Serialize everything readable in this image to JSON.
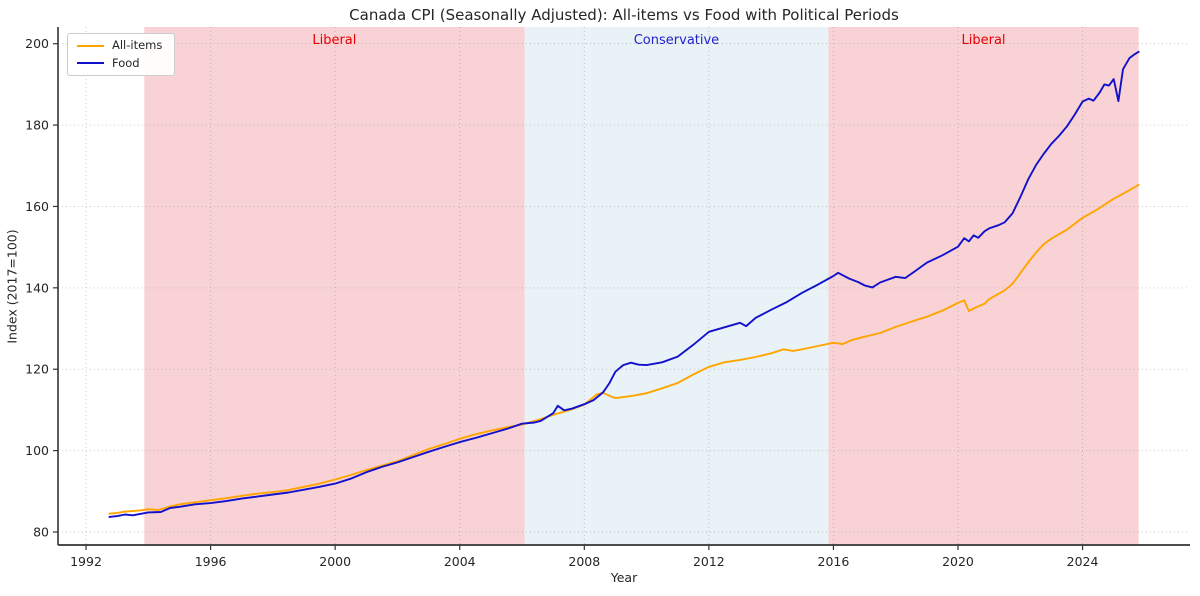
{
  "chart_data": {
    "type": "line",
    "title": "Canada CPI (Seasonally Adjusted): All-items vs Food with Political Periods",
    "xlabel": "Year",
    "ylabel": "Index (2017=100)",
    "xlim": [
      1991.1,
      2027.45
    ],
    "ylim": [
      76.8,
      204.1
    ],
    "x_ticks": [
      1992,
      1996,
      2000,
      2004,
      2008,
      2012,
      2016,
      2020,
      2024
    ],
    "y_ticks": [
      80,
      100,
      120,
      140,
      160,
      180,
      200
    ],
    "grid": "dotted",
    "legend_position": "upper-left",
    "axis_color": "#333333",
    "text_color": "#262626",
    "grid_color": "rgba(140,140,140,0.45)",
    "background_periods": [
      {
        "label": "Liberal",
        "start": 1993.87,
        "end": 2006.08,
        "fill": "#f9d2d6",
        "label_color": "#e60000"
      },
      {
        "label": "Conservative",
        "start": 2006.08,
        "end": 2015.84,
        "fill": "#e9f2f6",
        "label_color": "#2222cc"
      },
      {
        "label": "Liberal",
        "start": 2015.84,
        "end": 2025.8,
        "fill": "#f9d2d6",
        "label_color": "#e60000"
      }
    ],
    "series": [
      {
        "name": "All-items",
        "color": "#ffa500",
        "points": [
          [
            1992.75,
            84.5
          ],
          [
            1993.0,
            84.7
          ],
          [
            1993.25,
            85.0
          ],
          [
            1993.75,
            85.3
          ],
          [
            1994.0,
            85.6
          ],
          [
            1994.33,
            85.4
          ],
          [
            1994.66,
            86.2
          ],
          [
            1995.0,
            86.8
          ],
          [
            1995.5,
            87.3
          ],
          [
            1996.0,
            87.8
          ],
          [
            1996.5,
            88.3
          ],
          [
            1997.0,
            88.9
          ],
          [
            1997.5,
            89.4
          ],
          [
            1998.0,
            89.8
          ],
          [
            1998.5,
            90.3
          ],
          [
            1999.0,
            91.1
          ],
          [
            1999.5,
            91.9
          ],
          [
            2000.0,
            92.9
          ],
          [
            2000.5,
            94.0
          ],
          [
            2001.0,
            95.2
          ],
          [
            2001.5,
            96.3
          ],
          [
            2002.0,
            97.4
          ],
          [
            2002.5,
            98.9
          ],
          [
            2003.0,
            100.4
          ],
          [
            2003.5,
            101.6
          ],
          [
            2004.0,
            102.9
          ],
          [
            2004.5,
            104.0
          ],
          [
            2005.0,
            104.9
          ],
          [
            2005.5,
            105.7
          ],
          [
            2006.0,
            106.4
          ],
          [
            2006.5,
            107.5
          ],
          [
            2007.0,
            108.8
          ],
          [
            2007.5,
            109.9
          ],
          [
            2008.0,
            111.3
          ],
          [
            2008.4,
            113.8
          ],
          [
            2008.6,
            114.2
          ],
          [
            2008.8,
            113.5
          ],
          [
            2009.0,
            112.9
          ],
          [
            2009.5,
            113.4
          ],
          [
            2010.0,
            114.1
          ],
          [
            2010.5,
            115.3
          ],
          [
            2011.0,
            116.6
          ],
          [
            2011.5,
            118.7
          ],
          [
            2012.0,
            120.6
          ],
          [
            2012.5,
            121.7
          ],
          [
            2013.0,
            122.3
          ],
          [
            2013.5,
            123.0
          ],
          [
            2014.0,
            123.9
          ],
          [
            2014.4,
            124.9
          ],
          [
            2014.7,
            124.5
          ],
          [
            2015.0,
            124.9
          ],
          [
            2015.5,
            125.7
          ],
          [
            2016.0,
            126.5
          ],
          [
            2016.3,
            126.2
          ],
          [
            2016.6,
            127.2
          ],
          [
            2017.0,
            128.0
          ],
          [
            2017.5,
            128.9
          ],
          [
            2018.0,
            130.4
          ],
          [
            2018.5,
            131.7
          ],
          [
            2019.0,
            132.9
          ],
          [
            2019.5,
            134.4
          ],
          [
            2020.0,
            136.3
          ],
          [
            2020.2,
            136.9
          ],
          [
            2020.35,
            134.3
          ],
          [
            2020.6,
            135.3
          ],
          [
            2020.85,
            136.1
          ],
          [
            2021.0,
            137.2
          ],
          [
            2021.5,
            139.4
          ],
          [
            2021.75,
            141.0
          ],
          [
            2022.0,
            143.6
          ],
          [
            2022.25,
            146.2
          ],
          [
            2022.5,
            148.6
          ],
          [
            2022.75,
            150.7
          ],
          [
            2023.0,
            152.1
          ],
          [
            2023.5,
            154.3
          ],
          [
            2024.0,
            157.2
          ],
          [
            2024.5,
            159.4
          ],
          [
            2025.0,
            161.9
          ],
          [
            2025.25,
            162.9
          ],
          [
            2025.5,
            164.0
          ],
          [
            2025.8,
            165.3
          ]
        ]
      },
      {
        "name": "Food",
        "color": "#1111cc",
        "points": [
          [
            1992.75,
            83.7
          ],
          [
            1993.0,
            83.9
          ],
          [
            1993.25,
            84.3
          ],
          [
            1993.5,
            84.1
          ],
          [
            1994.0,
            84.8
          ],
          [
            1994.4,
            84.9
          ],
          [
            1994.7,
            85.9
          ],
          [
            1995.0,
            86.2
          ],
          [
            1995.5,
            86.8
          ],
          [
            1996.0,
            87.1
          ],
          [
            1996.5,
            87.6
          ],
          [
            1997.0,
            88.2
          ],
          [
            1997.5,
            88.7
          ],
          [
            1998.0,
            89.2
          ],
          [
            1998.5,
            89.7
          ],
          [
            1999.0,
            90.4
          ],
          [
            1999.5,
            91.1
          ],
          [
            2000.0,
            91.9
          ],
          [
            2000.5,
            93.1
          ],
          [
            2001.0,
            94.7
          ],
          [
            2001.5,
            96.0
          ],
          [
            2002.0,
            97.1
          ],
          [
            2002.5,
            98.4
          ],
          [
            2003.0,
            99.7
          ],
          [
            2003.5,
            100.9
          ],
          [
            2004.0,
            102.1
          ],
          [
            2004.5,
            103.1
          ],
          [
            2005.0,
            104.2
          ],
          [
            2005.5,
            105.3
          ],
          [
            2006.0,
            106.6
          ],
          [
            2006.4,
            106.9
          ],
          [
            2006.6,
            107.3
          ],
          [
            2007.0,
            109.2
          ],
          [
            2007.15,
            111.0
          ],
          [
            2007.35,
            109.9
          ],
          [
            2007.6,
            110.3
          ],
          [
            2008.0,
            111.4
          ],
          [
            2008.3,
            112.4
          ],
          [
            2008.6,
            114.3
          ],
          [
            2008.8,
            116.5
          ],
          [
            2009.0,
            119.4
          ],
          [
            2009.25,
            121.0
          ],
          [
            2009.5,
            121.6
          ],
          [
            2009.75,
            121.1
          ],
          [
            2010.0,
            121.0
          ],
          [
            2010.5,
            121.7
          ],
          [
            2011.0,
            123.1
          ],
          [
            2011.5,
            126.0
          ],
          [
            2012.0,
            129.2
          ],
          [
            2012.5,
            130.3
          ],
          [
            2013.0,
            131.4
          ],
          [
            2013.2,
            130.6
          ],
          [
            2013.5,
            132.6
          ],
          [
            2014.0,
            134.6
          ],
          [
            2014.5,
            136.5
          ],
          [
            2015.0,
            138.8
          ],
          [
            2015.5,
            140.8
          ],
          [
            2016.0,
            142.9
          ],
          [
            2016.15,
            143.7
          ],
          [
            2016.5,
            142.3
          ],
          [
            2016.8,
            141.4
          ],
          [
            2017.0,
            140.6
          ],
          [
            2017.25,
            140.1
          ],
          [
            2017.5,
            141.3
          ],
          [
            2018.0,
            142.7
          ],
          [
            2018.3,
            142.4
          ],
          [
            2018.6,
            144.0
          ],
          [
            2019.0,
            146.2
          ],
          [
            2019.5,
            148.0
          ],
          [
            2020.0,
            150.1
          ],
          [
            2020.2,
            152.2
          ],
          [
            2020.35,
            151.4
          ],
          [
            2020.5,
            152.9
          ],
          [
            2020.65,
            152.3
          ],
          [
            2020.85,
            153.9
          ],
          [
            2021.0,
            154.6
          ],
          [
            2021.3,
            155.4
          ],
          [
            2021.5,
            156.1
          ],
          [
            2021.75,
            158.3
          ],
          [
            2022.0,
            162.3
          ],
          [
            2022.25,
            166.6
          ],
          [
            2022.5,
            170.1
          ],
          [
            2022.75,
            172.9
          ],
          [
            2023.0,
            175.4
          ],
          [
            2023.25,
            177.4
          ],
          [
            2023.5,
            179.7
          ],
          [
            2023.75,
            182.6
          ],
          [
            2024.0,
            185.8
          ],
          [
            2024.2,
            186.5
          ],
          [
            2024.35,
            186.0
          ],
          [
            2024.55,
            188.0
          ],
          [
            2024.7,
            190.0
          ],
          [
            2024.85,
            189.7
          ],
          [
            2025.0,
            191.3
          ],
          [
            2025.15,
            185.9
          ],
          [
            2025.3,
            193.7
          ],
          [
            2025.5,
            196.4
          ],
          [
            2025.65,
            197.3
          ],
          [
            2025.8,
            198.0
          ]
        ]
      }
    ]
  }
}
